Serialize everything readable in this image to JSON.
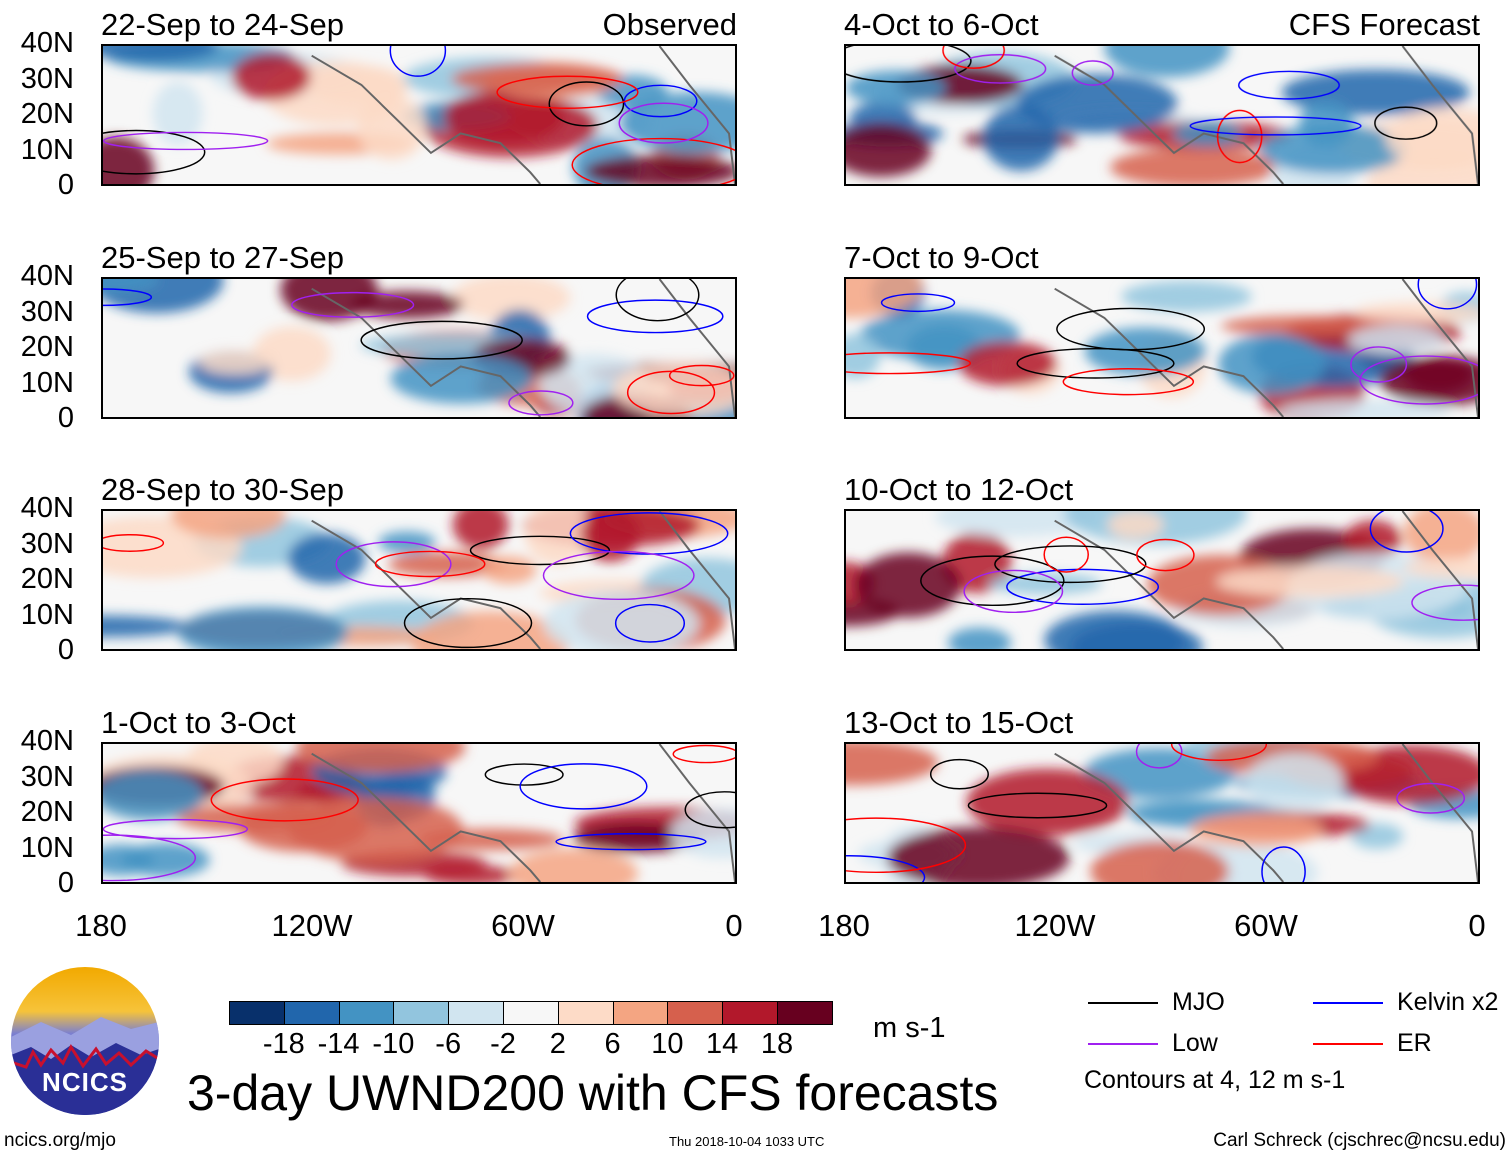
{
  "panels": [
    {
      "title": "22-Sep to 24-Sep",
      "label": "Observed",
      "column": "left"
    },
    {
      "title": "25-Sep to 27-Sep",
      "label": "",
      "column": "left"
    },
    {
      "title": "28-Sep to 30-Sep",
      "label": "",
      "column": "left"
    },
    {
      "title": "1-Oct to 3-Oct",
      "label": "",
      "column": "left"
    },
    {
      "title": "4-Oct to 6-Oct",
      "label": "CFS Forecast",
      "column": "right"
    },
    {
      "title": "7-Oct to 9-Oct",
      "label": "",
      "column": "right"
    },
    {
      "title": "10-Oct to 12-Oct",
      "label": "",
      "column": "right"
    },
    {
      "title": "13-Oct to 15-Oct",
      "label": "",
      "column": "right"
    }
  ],
  "lat_labels": [
    "40N",
    "30N",
    "20N",
    "10N",
    "0"
  ],
  "lon_labels": [
    "180",
    "120W",
    "60W",
    "0"
  ],
  "colorbar": {
    "colors": [
      "#08306b",
      "#2166ac",
      "#4393c3",
      "#92c5de",
      "#d1e5f0",
      "#f7f7f7",
      "#fddbc7",
      "#f4a582",
      "#d6604d",
      "#b2182b",
      "#67001f"
    ],
    "ticks": [
      "-18",
      "-14",
      "-10",
      "-6",
      "-2",
      "2",
      "6",
      "10",
      "14",
      "18"
    ],
    "units": "m s-1"
  },
  "legend": {
    "items": [
      {
        "label": "MJO",
        "color": "#000000"
      },
      {
        "label": "Kelvin x2",
        "color": "#0000ff"
      },
      {
        "label": "Low",
        "color": "#a020f0"
      },
      {
        "label": "ER",
        "color": "#ff0000"
      }
    ],
    "note": "Contours at 4, 12 m s-1"
  },
  "logo": {
    "text": "NCICS"
  },
  "title": "3-day UWND200 with CFS forecasts",
  "footer": {
    "left": "ncics.org/mjo",
    "center": "Thu 2018-10-04 1033 UTC",
    "right": "Carl Schreck (cjschrec@ncsu.edu)"
  }
}
